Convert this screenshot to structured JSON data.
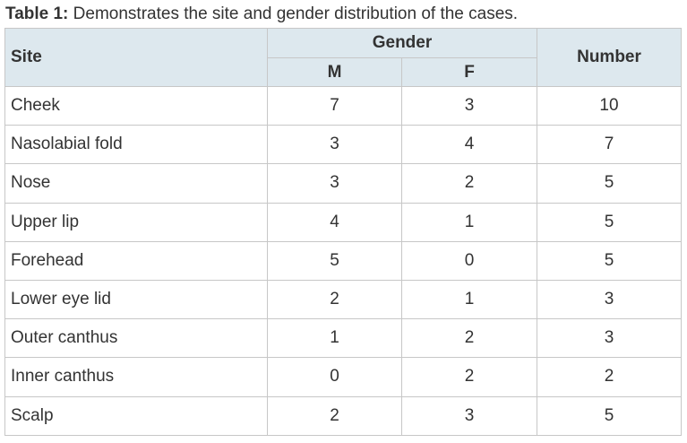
{
  "caption": {
    "label": "Table 1:",
    "text": "Demonstrates the site and gender distribution of the cases."
  },
  "table": {
    "headers": {
      "site": "Site",
      "gender": "Gender",
      "m": "M",
      "f": "F",
      "number": "Number"
    },
    "rows": [
      {
        "site": "Cheek",
        "m": "7",
        "f": "3",
        "number": "10"
      },
      {
        "site": "Nasolabial fold",
        "m": "3",
        "f": "4",
        "number": "7"
      },
      {
        "site": "Nose",
        "m": "3",
        "f": "2",
        "number": "5"
      },
      {
        "site": "Upper lip",
        "m": "4",
        "f": "1",
        "number": "5"
      },
      {
        "site": "Forehead",
        "m": "5",
        "f": "0",
        "number": "5"
      },
      {
        "site": "Lower eye lid",
        "m": "2",
        "f": "1",
        "number": "3"
      },
      {
        "site": "Outer canthus",
        "m": "1",
        "f": "2",
        "number": "3"
      },
      {
        "site": "Inner canthus",
        "m": "0",
        "f": "2",
        "number": "2"
      },
      {
        "site": "Scalp",
        "m": "2",
        "f": "3",
        "number": "5"
      }
    ]
  },
  "colors": {
    "header_bg": "#dde8ee",
    "border": "#c7c7c7",
    "text": "#333333"
  }
}
